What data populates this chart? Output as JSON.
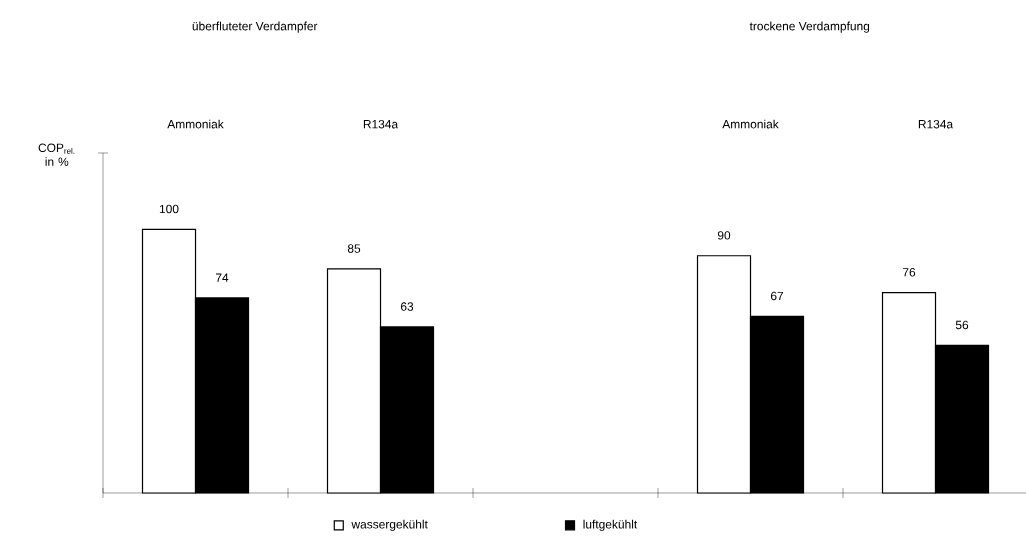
{
  "chart_data": {
    "type": "bar",
    "ylabel": "COP$_{rel.}$ in %",
    "annotations": [
      "überfluteter Verdampfer",
      "trockene Verdampfung"
    ],
    "categories": [
      "Ammoniak",
      "R134a",
      null,
      "Ammoniak",
      "R134a"
    ],
    "series": [
      {
        "name": "wassergekühlt",
        "color": "#ffffff",
        "values": [
          100,
          85,
          null,
          90,
          76
        ]
      },
      {
        "name": "luftgekühlt",
        "color": "#000000",
        "values": [
          74,
          63,
          null,
          67,
          56
        ]
      }
    ],
    "ylim": [
      0,
      129
    ],
    "data_labels": true,
    "legend": "bottom",
    "grid": false
  }
}
